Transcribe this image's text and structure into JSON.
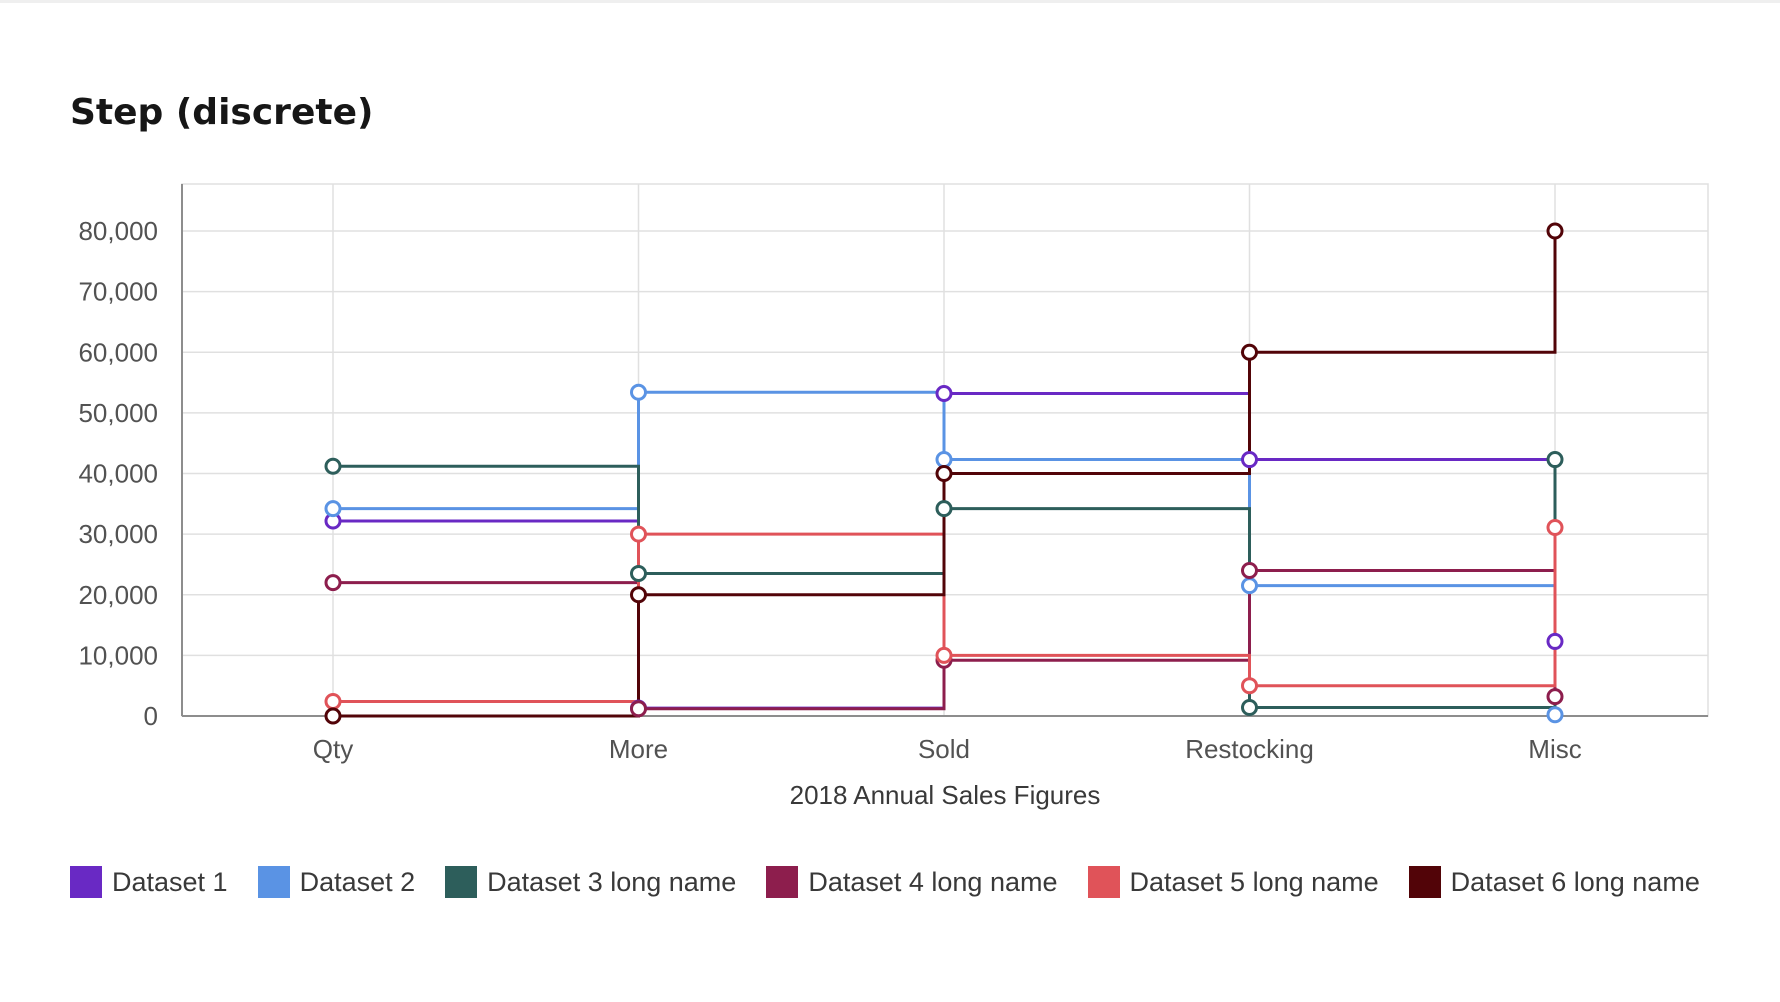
{
  "chart_data": {
    "type": "line",
    "title": "Step (discrete)",
    "xlabel": "2018 Annual Sales Figures",
    "ylabel": "",
    "categories": [
      "Qty",
      "More",
      "Sold",
      "Restocking",
      "Misc"
    ],
    "ylim": [
      0,
      80000
    ],
    "yticks": [
      "0",
      "10,000",
      "20,000",
      "30,000",
      "40,000",
      "50,000",
      "60,000",
      "70,000",
      "80,000"
    ],
    "curve": "step",
    "grid": true,
    "legend_position": "bottom-left",
    "series": [
      {
        "name": "Dataset 1",
        "color": "#6929c4",
        "values": [
          32168,
          1300,
          53200,
          42300,
          12300
        ]
      },
      {
        "name": "Dataset 2",
        "color": "#5a93e4",
        "values": [
          34200,
          53400,
          42300,
          21500,
          200
        ]
      },
      {
        "name": "Dataset 3 long name",
        "color": "#2d5e5b",
        "values": [
          41200,
          23500,
          34200,
          1400,
          42300
        ]
      },
      {
        "name": "Dataset 4 long name",
        "color": "#8d1e4d",
        "values": [
          22000,
          1200,
          9200,
          24000,
          3200
        ]
      },
      {
        "name": "Dataset 5 long name",
        "color": "#e05359",
        "values": [
          2400,
          30000,
          10000,
          5000,
          31100
        ]
      },
      {
        "name": "Dataset 6 long name",
        "color": "#520408",
        "values": [
          0,
          20000,
          40000,
          60000,
          80000
        ]
      }
    ]
  }
}
